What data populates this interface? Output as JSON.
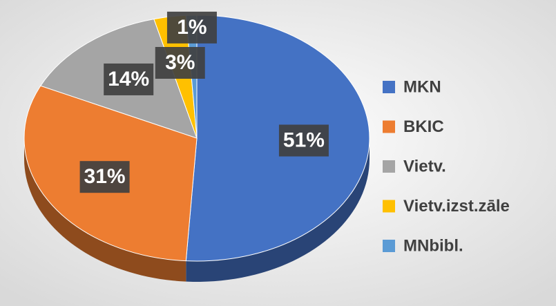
{
  "chart_data": {
    "type": "pie",
    "categories": [
      "MKN",
      "BKIC",
      "Vietv.",
      "Vietv.izst.zāle",
      "MNbibl."
    ],
    "values": [
      51,
      31,
      14,
      3,
      1
    ],
    "value_labels": [
      "51%",
      "31%",
      "14%",
      "3%",
      "1%"
    ],
    "colors": [
      "#4472c4",
      "#ed7d31",
      "#a5a5a5",
      "#ffc000",
      "#5b9bd5"
    ],
    "legend": "right"
  }
}
